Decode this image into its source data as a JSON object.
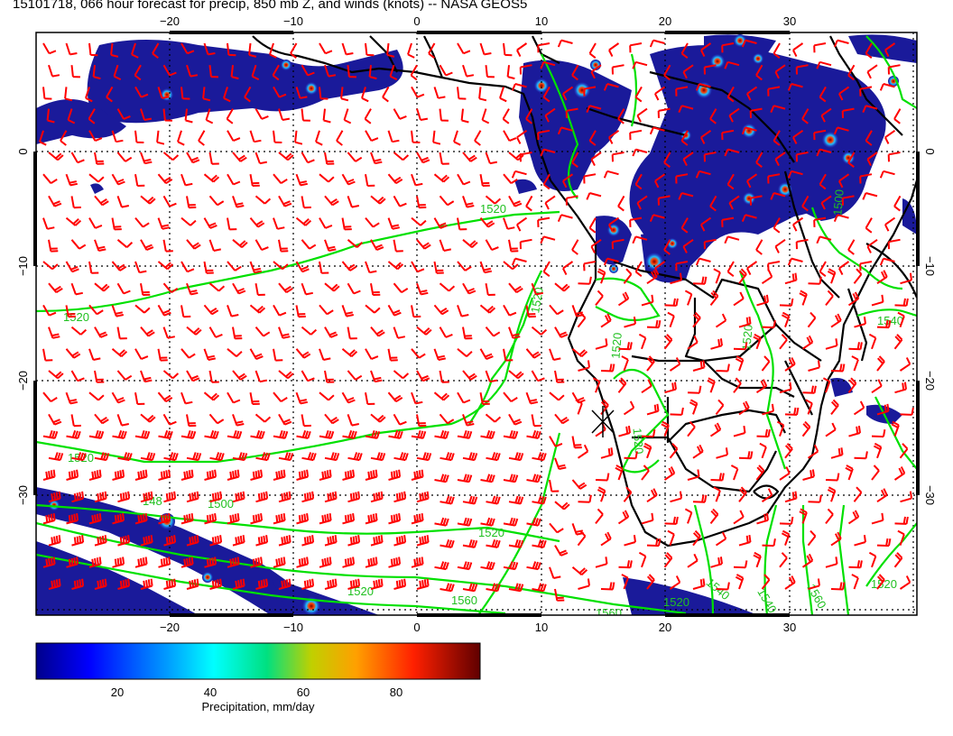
{
  "title": "15101718, 066 hour forecast for precip, 850 mb Z, and winds (knots) -- NASA GEOS5",
  "map": {
    "lon_range": [
      -30,
      40
    ],
    "lat_range": [
      -39,
      11
    ],
    "lon_ticks": [
      "−20",
      "−10",
      "0",
      "10",
      "20",
      "30"
    ],
    "lat_ticks": [
      "0",
      "−10",
      "−20",
      "−30"
    ],
    "colors": {
      "barb": "#ff0000",
      "contour": "#00e000",
      "coast": "#000000",
      "grid": "#000000"
    },
    "contour_labels": [
      "1520",
      "1520",
      "1520",
      "1520",
      "1520",
      "1500",
      "1540",
      "1520",
      "1520",
      "148",
      "1500",
      "1520",
      "1520",
      "1560",
      "1520",
      "1540",
      "1560",
      "1560",
      "1540",
      "1520"
    ]
  },
  "colorbar": {
    "label": "Precipitation, mm/day",
    "ticks": [
      "20",
      "40",
      "60",
      "80"
    ],
    "range": [
      0,
      100
    ]
  }
}
